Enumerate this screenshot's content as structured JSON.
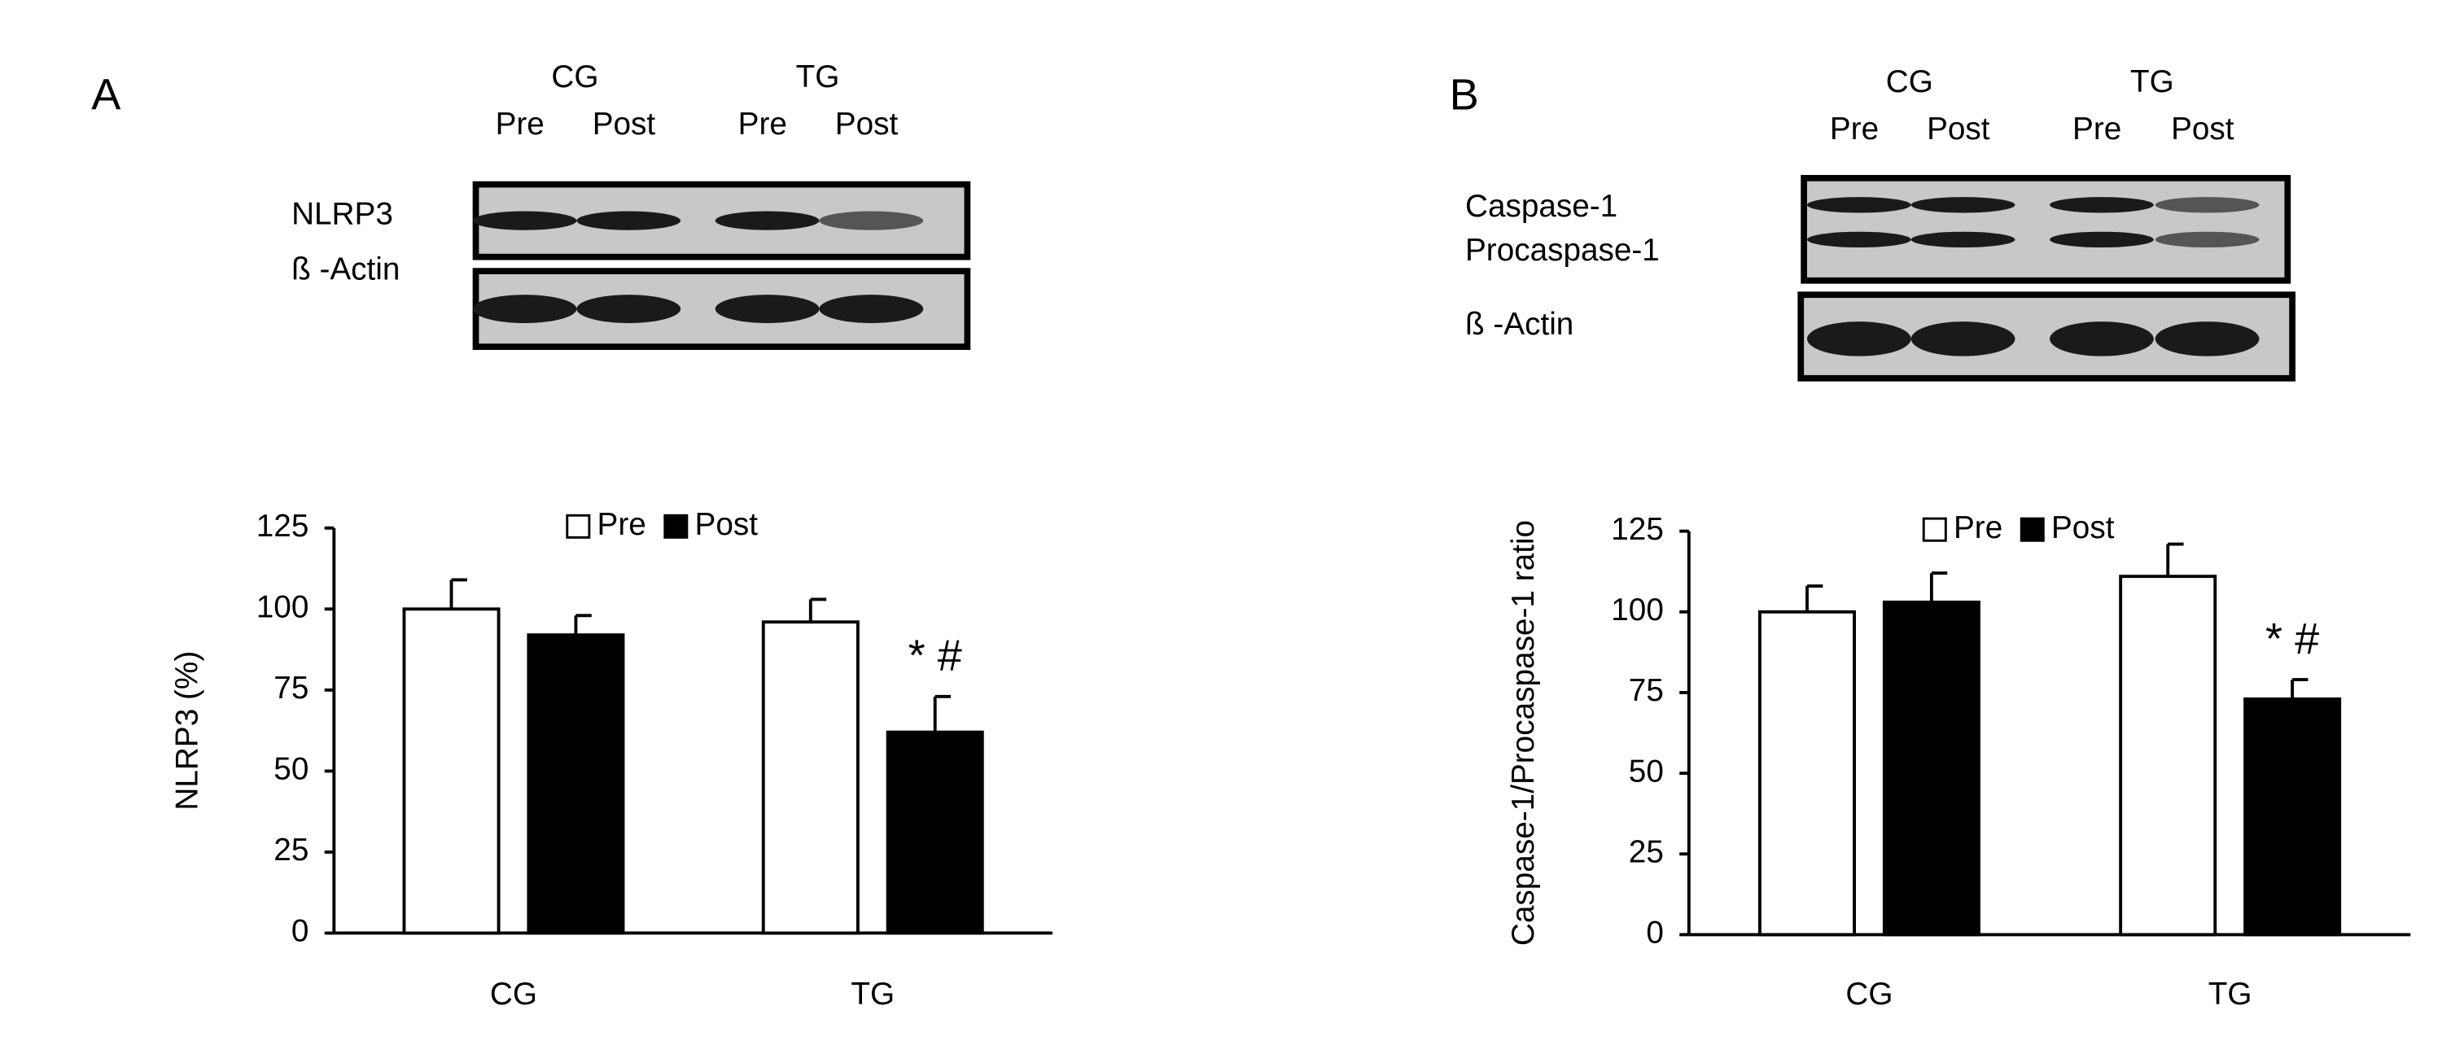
{
  "chart_data": [
    {
      "type": "bar",
      "panel": "A",
      "ylabel": "NLRP3 (%)",
      "blot": {
        "groups": [
          "CG",
          "TG"
        ],
        "lanes": [
          "Pre",
          "Post",
          "Pre",
          "Post"
        ],
        "bands": [
          "NLRP3",
          "ß -Actin"
        ]
      },
      "categories": [
        "CG",
        "TG"
      ],
      "series": [
        {
          "name": "Pre",
          "color": "#ffffff",
          "values": [
            100,
            96
          ],
          "errors": [
            9,
            7
          ]
        },
        {
          "name": "Post",
          "color": "#000000",
          "values": [
            92,
            62
          ],
          "errors": [
            6,
            11
          ]
        }
      ],
      "annotation": "* #",
      "ylim": [
        0,
        125
      ],
      "yticks": [
        0,
        25,
        50,
        75,
        100,
        125
      ],
      "legend": "top"
    },
    {
      "type": "bar",
      "panel": "B",
      "ylabel": "Caspase-1/Procaspase-1 ratio",
      "blot": {
        "groups": [
          "CG",
          "TG"
        ],
        "lanes": [
          "Pre",
          "Post",
          "Pre",
          "Post"
        ],
        "bands": [
          "Caspase-1",
          "Procaspase-1",
          "ß -Actin"
        ]
      },
      "categories": [
        "CG",
        "TG"
      ],
      "series": [
        {
          "name": "Pre",
          "color": "#ffffff",
          "values": [
            100,
            111
          ],
          "errors": [
            8,
            10
          ]
        },
        {
          "name": "Post",
          "color": "#000000",
          "values": [
            103,
            73
          ],
          "errors": [
            9,
            6
          ]
        }
      ],
      "annotation": "* #",
      "ylim": [
        0,
        125
      ],
      "yticks": [
        0,
        25,
        50,
        75,
        100,
        125
      ],
      "legend": "top"
    }
  ]
}
